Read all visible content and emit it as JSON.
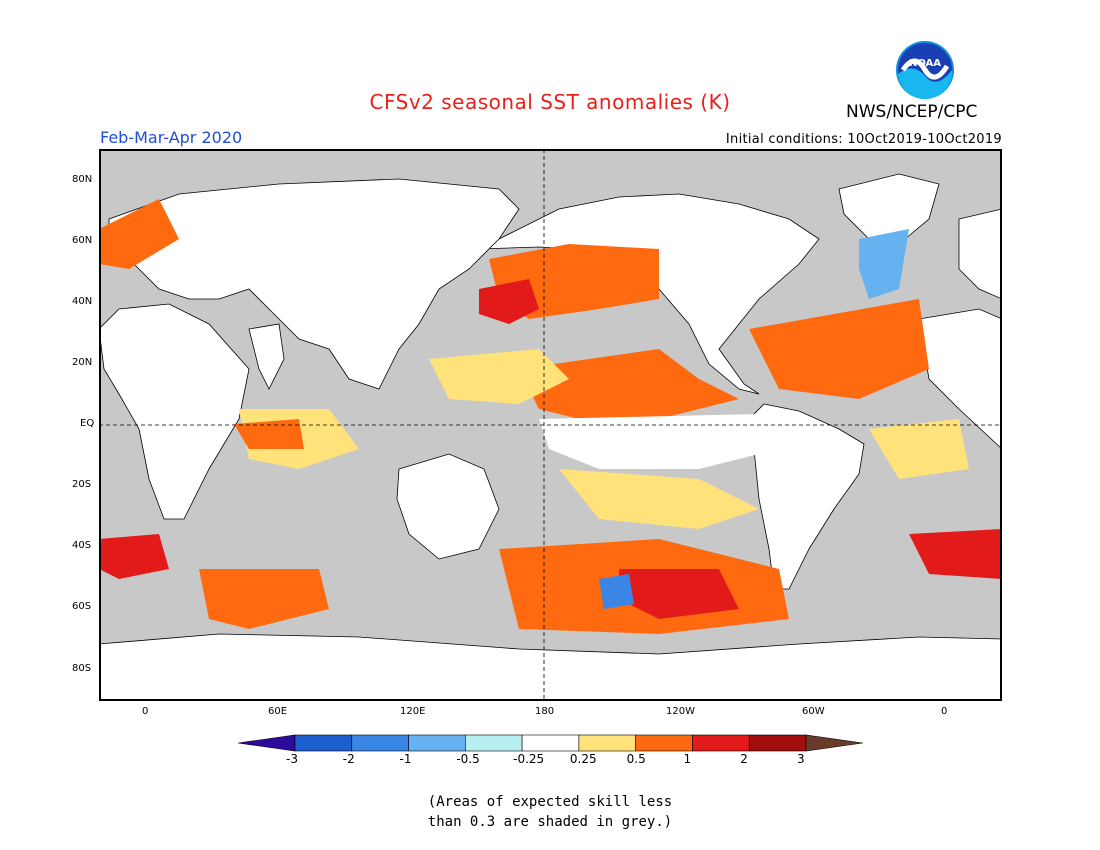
{
  "title": "CFSv2 seasonal SST anomalies (K)",
  "organization": "NWS/NCEP/CPC",
  "logo_text": "NOAA",
  "forecast_period": "Feb-Mar-Apr 2020",
  "initial_conditions": "Initial conditions: 10Oct2019-10Oct2019",
  "lat_labels": [
    "80N",
    "60N",
    "40N",
    "20N",
    "EQ",
    "20S",
    "40S",
    "60S",
    "80S"
  ],
  "lon_labels": [
    "0",
    "60E",
    "120E",
    "180",
    "120W",
    "60W",
    "0"
  ],
  "colorbar": {
    "labels": [
      "-3",
      "-2",
      "-1",
      "-0.5",
      "-0.25",
      "0.25",
      "0.5",
      "1",
      "2",
      "3"
    ],
    "colors": [
      "#2b0a9c",
      "#1d5fcf",
      "#3a86e6",
      "#66b2f0",
      "#b7eef2",
      "#ffffff",
      "#ffe27a",
      "#ff6a10",
      "#e21a1a",
      "#a30d0d",
      "#6b3b2a"
    ]
  },
  "note_line1": "(Areas of expected skill less",
  "note_line2": "than 0.3 are shaded in grey.)",
  "colors": {
    "skill_grey": "#c8c8c8",
    "land": "#ffffff",
    "title_red": "#e8201c",
    "period_blue": "#1f4fd6"
  }
}
